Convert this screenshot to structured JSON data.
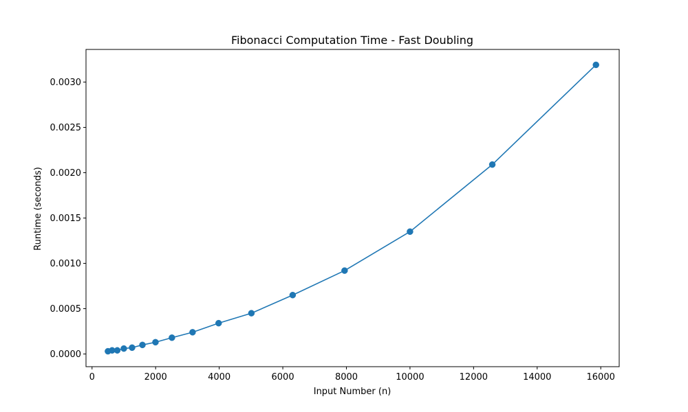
{
  "chart_data": {
    "type": "line",
    "title": "Fibonacci Computation Time - Fast Doubling",
    "xlabel": "Input Number (n)",
    "ylabel": "Runtime (seconds)",
    "xlim": [
      -190,
      16580
    ],
    "ylim": [
      -0.00014,
      0.00336
    ],
    "x_ticks": [
      0,
      2000,
      4000,
      6000,
      8000,
      10000,
      12000,
      14000,
      16000
    ],
    "x_tick_labels": [
      "0",
      "2000",
      "4000",
      "6000",
      "8000",
      "10000",
      "12000",
      "14000",
      "16000"
    ],
    "y_ticks": [
      0.0,
      0.0005,
      0.001,
      0.0015,
      0.002,
      0.0025,
      0.003
    ],
    "y_tick_labels": [
      "0.0000",
      "0.0005",
      "0.0010",
      "0.0015",
      "0.0020",
      "0.0025",
      "0.0030"
    ],
    "grid": false,
    "line_color": "#1f77b4",
    "marker": "circle",
    "series": [
      {
        "x": [
          500,
          631,
          794,
          1000,
          1259,
          1585,
          1995,
          2512,
          3162,
          3981,
          5012,
          6310,
          7943,
          10000,
          12589,
          15849
        ],
        "y": [
          3e-05,
          4e-05,
          4e-05,
          6e-05,
          7e-05,
          0.0001,
          0.00013,
          0.00018,
          0.00024,
          0.00034,
          0.00045,
          0.00065,
          0.00092,
          0.00135,
          0.00209,
          0.00319
        ]
      }
    ]
  }
}
